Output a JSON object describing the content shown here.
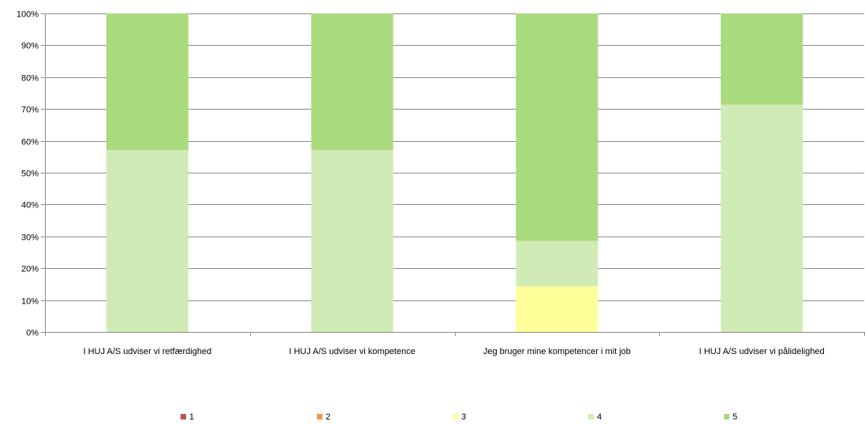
{
  "chart_data": {
    "type": "bar",
    "stacked": true,
    "percent": true,
    "categories": [
      "I HUJ A/S udviser vi retfærdighed",
      "I HUJ A/S udviser vi kompetence",
      "Jeg bruger mine kompetencer i mit job",
      "I HUJ A/S udviser vi pålidelighed"
    ],
    "series": [
      {
        "name": "1",
        "color": "#C0504D",
        "values": [
          0,
          0,
          0,
          0
        ]
      },
      {
        "name": "2",
        "color": "#F79646",
        "values": [
          0,
          0,
          0,
          0
        ]
      },
      {
        "name": "3",
        "color": "#FFFF99",
        "values": [
          0,
          0,
          14.3,
          0
        ]
      },
      {
        "name": "4",
        "color": "#D0EBB5",
        "values": [
          57.1,
          57.1,
          14.3,
          71.4
        ]
      },
      {
        "name": "5",
        "color": "#A9DA7D",
        "values": [
          42.9,
          42.9,
          71.4,
          28.6
        ]
      }
    ],
    "ylim": [
      0,
      100
    ],
    "yticks": [
      "0%",
      "10%",
      "20%",
      "30%",
      "40%",
      "50%",
      "60%",
      "70%",
      "80%",
      "90%",
      "100%"
    ],
    "grid": true,
    "legend_position": "bottom"
  }
}
